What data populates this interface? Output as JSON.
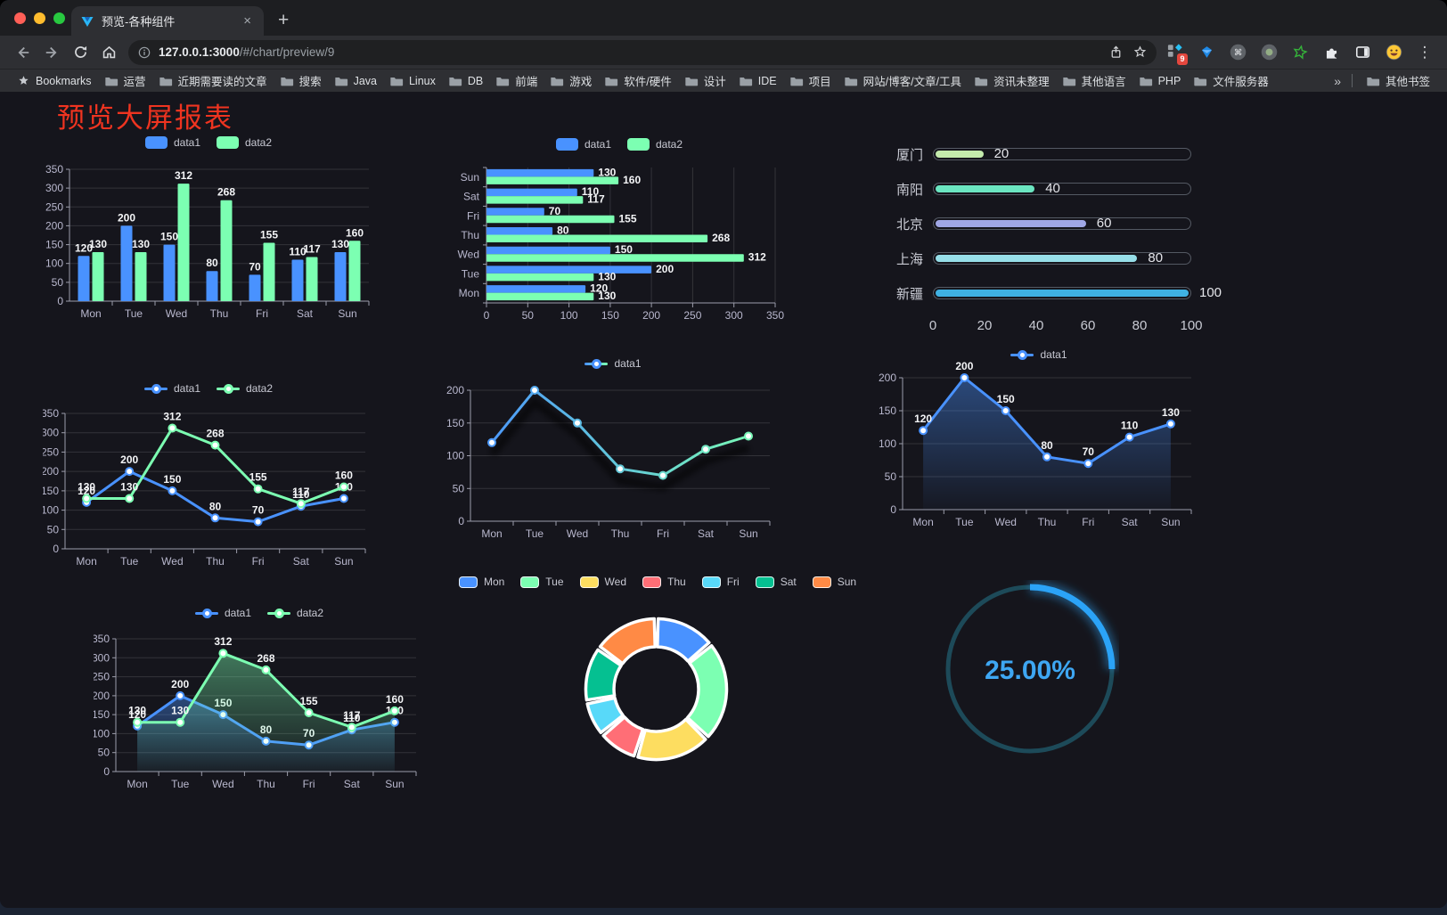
{
  "browser": {
    "tab": {
      "title": "预览-各种组件",
      "close_label": "×",
      "new_tab_label": "+"
    },
    "url": {
      "host": "127.0.0.1:3000",
      "path": "/#/chart/preview/9"
    },
    "extensions_badge": "9",
    "extension_icons": [
      "extensions-grid-icon",
      "gem-icon",
      "command-circle-icon",
      "recorder-circle-icon",
      "green-star-icon",
      "puzzle-icon",
      "sidebar-icon",
      "emoji-icon"
    ],
    "bookmarks_label": "Bookmarks",
    "bookmarks": [
      "运营",
      "近期需要读的文章",
      "搜索",
      "Java",
      "Linux",
      "DB",
      "前端",
      "游戏",
      "软件/硬件",
      "设计",
      "IDE",
      "项目",
      "网站/博客/文章/工具",
      "资讯未整理",
      "其他语言",
      "PHP",
      "文件服务器"
    ],
    "bookmarks_overflow": "»",
    "other_bookmarks": "其他书签"
  },
  "page": {
    "title": "预览大屏报表",
    "title_color": "#ef3420",
    "background": "#15151c"
  },
  "chart_data": [
    {
      "id": "grouped-bar",
      "type": "bar",
      "categories": [
        "Mon",
        "Tue",
        "Wed",
        "Thu",
        "Fri",
        "Sat",
        "Sun"
      ],
      "series": [
        {
          "name": "data1",
          "color": "#4992ff",
          "values": [
            120,
            200,
            150,
            80,
            70,
            110,
            130
          ]
        },
        {
          "name": "data2",
          "color": "#7cffb2",
          "values": [
            130,
            130,
            312,
            268,
            155,
            117,
            160
          ]
        }
      ],
      "ylim": [
        0,
        350
      ],
      "ytick": 50,
      "value_labels": true,
      "grid": true,
      "legend_position": "top"
    },
    {
      "id": "horizontal-bar",
      "type": "bar-horizontal",
      "categories": [
        "Mon",
        "Tue",
        "Wed",
        "Thu",
        "Fri",
        "Sat",
        "Sun"
      ],
      "series": [
        {
          "name": "data1",
          "color": "#4992ff",
          "values": [
            120,
            200,
            150,
            80,
            70,
            110,
            130
          ]
        },
        {
          "name": "data2",
          "color": "#7cffb2",
          "values": [
            130,
            130,
            312,
            268,
            155,
            117,
            160
          ]
        }
      ],
      "xlim": [
        0,
        350
      ],
      "xtick": 50,
      "value_labels": true,
      "grid": true,
      "legend_position": "top"
    },
    {
      "id": "city-progress",
      "type": "progress",
      "max": 100,
      "axis_ticks": [
        0,
        20,
        40,
        60,
        80,
        100
      ],
      "items": [
        {
          "label": "厦门",
          "value": 20,
          "color": "#c4ebad"
        },
        {
          "label": "南阳",
          "value": 40,
          "color": "#6be6c1"
        },
        {
          "label": "北京",
          "value": 60,
          "color": "#a0a7e6"
        },
        {
          "label": "上海",
          "value": 80,
          "color": "#96dee8"
        },
        {
          "label": "新疆",
          "value": 100,
          "color": "#3fb1e3"
        }
      ]
    },
    {
      "id": "multi-line",
      "type": "line",
      "categories": [
        "Mon",
        "Tue",
        "Wed",
        "Thu",
        "Fri",
        "Sat",
        "Sun"
      ],
      "series": [
        {
          "name": "data1",
          "color": "#4992ff",
          "values": [
            120,
            200,
            150,
            80,
            70,
            110,
            130
          ]
        },
        {
          "name": "data2",
          "color": "#7cffb2",
          "values": [
            130,
            130,
            312,
            268,
            155,
            117,
            160
          ]
        }
      ],
      "ylim": [
        0,
        350
      ],
      "ytick": 50,
      "value_labels": true,
      "grid": true,
      "legend_position": "top"
    },
    {
      "id": "gradient-line",
      "type": "line",
      "categories": [
        "Mon",
        "Tue",
        "Wed",
        "Thu",
        "Fri",
        "Sat",
        "Sun"
      ],
      "series": [
        {
          "name": "data1",
          "color_gradient": [
            "#4992ff",
            "#7cffb2"
          ],
          "values": [
            120,
            200,
            150,
            80,
            70,
            110,
            130
          ]
        }
      ],
      "ylim": [
        0,
        200
      ],
      "ytick": 50,
      "value_labels": false,
      "shadow": true,
      "grid": true,
      "legend_position": "top"
    },
    {
      "id": "area-line",
      "type": "line",
      "categories": [
        "Mon",
        "Tue",
        "Wed",
        "Thu",
        "Fri",
        "Sat",
        "Sun"
      ],
      "series": [
        {
          "name": "data1",
          "color": "#4992ff",
          "values": [
            120,
            200,
            150,
            80,
            70,
            110,
            130
          ],
          "area": true
        }
      ],
      "ylim": [
        0,
        200
      ],
      "ytick": 50,
      "value_labels": true,
      "grid": true,
      "legend_position": "top"
    },
    {
      "id": "multi-line-area",
      "type": "line",
      "categories": [
        "Mon",
        "Tue",
        "Wed",
        "Thu",
        "Fri",
        "Sat",
        "Sun"
      ],
      "series": [
        {
          "name": "data1",
          "color": "#4992ff",
          "values": [
            120,
            200,
            150,
            80,
            70,
            110,
            130
          ],
          "area": true
        },
        {
          "name": "data2",
          "color": "#7cffb2",
          "values": [
            130,
            130,
            312,
            268,
            155,
            117,
            160
          ],
          "area": true
        }
      ],
      "ylim": [
        0,
        350
      ],
      "ytick": 50,
      "value_labels": true,
      "grid": true,
      "legend_position": "top"
    },
    {
      "id": "weekday-donut",
      "type": "pie",
      "inner_radius_ratio": 0.6,
      "legend_position": "top",
      "items": [
        {
          "label": "Mon",
          "value": 120,
          "color": "#4992ff"
        },
        {
          "label": "Tue",
          "value": 200,
          "color": "#7cffb2"
        },
        {
          "label": "Wed",
          "value": 150,
          "color": "#fddd60"
        },
        {
          "label": "Thu",
          "value": 80,
          "color": "#ff6e76"
        },
        {
          "label": "Fri",
          "value": 70,
          "color": "#58d9f9"
        },
        {
          "label": "Sat",
          "value": 110,
          "color": "#05c091"
        },
        {
          "label": "Sun",
          "value": 130,
          "color": "#ff8a45"
        }
      ]
    },
    {
      "id": "percent-gauge",
      "type": "gauge",
      "value": 25,
      "display": "25.00%",
      "color": "#2ba3f7",
      "track_color": "#1d4a59"
    }
  ]
}
